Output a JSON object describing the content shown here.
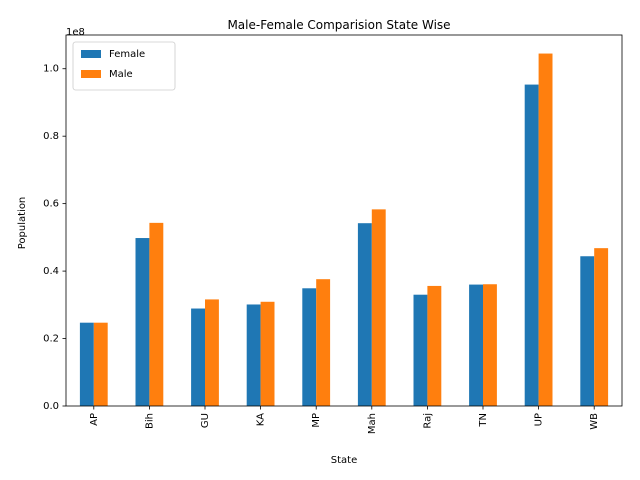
{
  "chart_data": {
    "type": "bar",
    "title": "Male-Female Comparision State Wise",
    "xlabel": "State",
    "ylabel": "Population",
    "offset_text": "1e8",
    "categories": [
      "AP",
      "Bih",
      "GU",
      "KA",
      "MP",
      "Mah",
      "Raj",
      "TN",
      "UP",
      "WB"
    ],
    "series": [
      {
        "name": "Female",
        "color": "#1f77b4",
        "values": [
          24700000,
          49800000,
          28900000,
          30100000,
          34900000,
          54200000,
          33000000,
          36000000,
          95300000,
          44400000
        ]
      },
      {
        "name": "Male",
        "color": "#ff7f0e",
        "values": [
          24700000,
          54300000,
          31600000,
          30900000,
          37600000,
          58300000,
          35600000,
          36100000,
          104500000,
          46800000
        ]
      }
    ],
    "ylim": [
      0,
      110000000
    ],
    "yticks": [
      0,
      20000000,
      40000000,
      60000000,
      80000000,
      100000000
    ],
    "ytick_labels": [
      "0.0",
      "0.2",
      "0.4",
      "0.6",
      "0.8",
      "1.0"
    ],
    "grid": false,
    "legend": "top-left"
  }
}
